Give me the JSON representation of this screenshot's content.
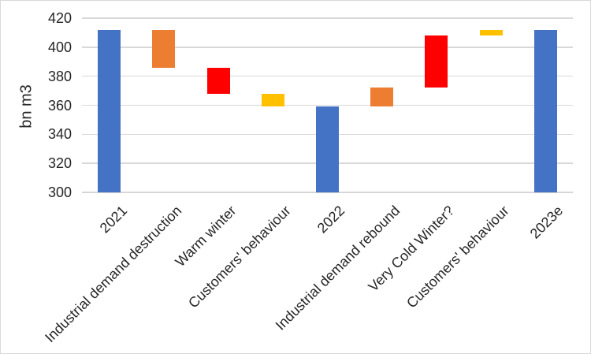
{
  "chart_data": {
    "type": "bar",
    "subtype": "waterfall",
    "title": "",
    "xlabel": "",
    "ylabel": "bn m3",
    "ylim": [
      300,
      420
    ],
    "grid": true,
    "legend": "none",
    "y_axis": {
      "title": "bn m3",
      "min": 300,
      "max": 420,
      "step": 20,
      "ticks": [
        420,
        400,
        380,
        360,
        340,
        320,
        300
      ]
    },
    "categories": [
      "2021",
      "Industrial demand destruction",
      "Warm winter",
      "Customers' behaviour",
      "2022",
      "Industrial demand rebound",
      "Very Cold Winter?",
      "Customers' behaviour",
      "2023e"
    ],
    "bars": [
      {
        "label": "2021",
        "from": 300,
        "to": 412,
        "value": 412,
        "change": 0,
        "role": "total",
        "color": "#4472C4"
      },
      {
        "label": "Industrial demand destruction",
        "from": 386,
        "to": 412,
        "value": 386,
        "change": -26,
        "role": "decrease",
        "color": "#ED7D31"
      },
      {
        "label": "Warm winter",
        "from": 368,
        "to": 386,
        "value": 368,
        "change": -18,
        "role": "decrease",
        "color": "#FF0000"
      },
      {
        "label": "Customers' behaviour",
        "from": 359,
        "to": 368,
        "value": 359,
        "change": -9,
        "role": "decrease",
        "color": "#FFC000"
      },
      {
        "label": "2022",
        "from": 300,
        "to": 359,
        "value": 359,
        "change": 0,
        "role": "total",
        "color": "#4472C4"
      },
      {
        "label": "Industrial demand rebound",
        "from": 359,
        "to": 372,
        "value": 372,
        "change": 13,
        "role": "increase",
        "color": "#ED7D31"
      },
      {
        "label": "Very Cold Winter?",
        "from": 372,
        "to": 408,
        "value": 408,
        "change": 36,
        "role": "increase",
        "color": "#FF0000"
      },
      {
        "label": "Customers' behaviour",
        "from": 408,
        "to": 412,
        "value": 412,
        "change": 4,
        "role": "increase",
        "color": "#FFC000"
      },
      {
        "label": "2023e",
        "from": 300,
        "to": 412,
        "value": 412,
        "change": 0,
        "role": "total",
        "color": "#4472C4"
      }
    ],
    "colors": {
      "total": "#4472C4",
      "industrial": "#ED7D31",
      "winter": "#FF0000",
      "behaviour": "#FFC000",
      "gridline": "#D9D9D9",
      "text": "#262626",
      "border": "#D9D9D9",
      "background": "#FFFFFF"
    }
  }
}
